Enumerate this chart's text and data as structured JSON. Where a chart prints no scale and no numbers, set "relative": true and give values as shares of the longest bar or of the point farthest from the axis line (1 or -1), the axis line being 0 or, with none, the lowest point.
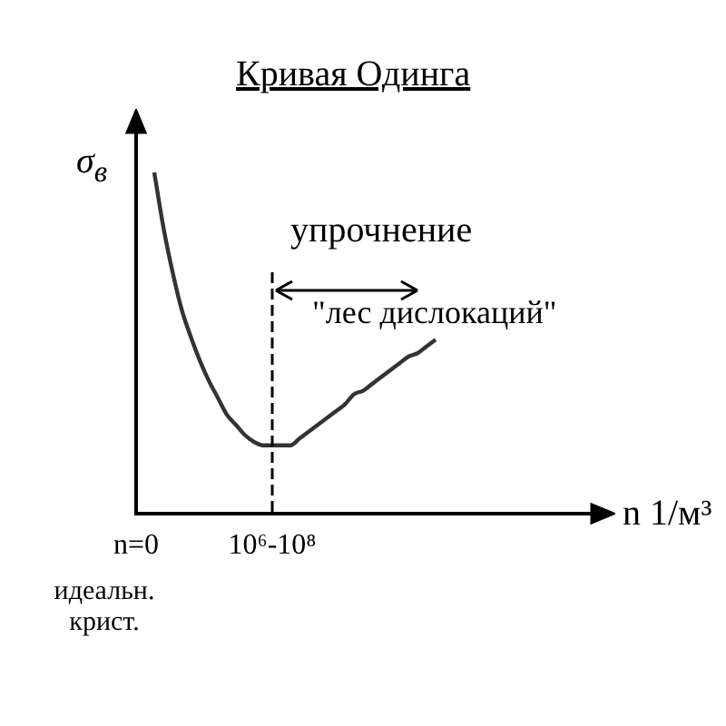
{
  "chart_data": {
    "type": "line",
    "title": "Кривая Одинга",
    "ylabel": "σ$_{в}$",
    "relative": true,
    "color": "#333333",
    "marker": "none",
    "line_style": "solid",
    "grid": false,
    "legend": false,
    "categories": [
      "n=0",
      null,
      null,
      null,
      null,
      null,
      null,
      null,
      null,
      null,
      null,
      null,
      null,
      null,
      null,
      "10⁶-10⁸",
      null,
      null,
      null,
      null,
      null,
      null,
      null,
      null,
      null,
      null,
      null,
      null,
      null,
      null,
      null,
      null,
      null,
      null
    ],
    "values": [
      null,
      null,
      1,
      0.84,
      0.71,
      0.6,
      0.52,
      0.45,
      0.39,
      0.34,
      0.29,
      0.26,
      0.23,
      0.21,
      0.2,
      0.2,
      0.2,
      0.2,
      0.22,
      0.24,
      0.26,
      0.28,
      0.3,
      0.32,
      0.35,
      0.36,
      0.38,
      0.4,
      0.42,
      0.44,
      0.46,
      0.47,
      0.49,
      0.51
    ],
    "ref_lines": [
      {
        "axis": "x",
        "value": "10⁶-10⁸",
        "line_style": "dashed"
      }
    ],
    "annotations": [
      "идеальн. крист.",
      "упрочнение",
      "\"лес дислокаций\"",
      "n 1/м³"
    ]
  }
}
